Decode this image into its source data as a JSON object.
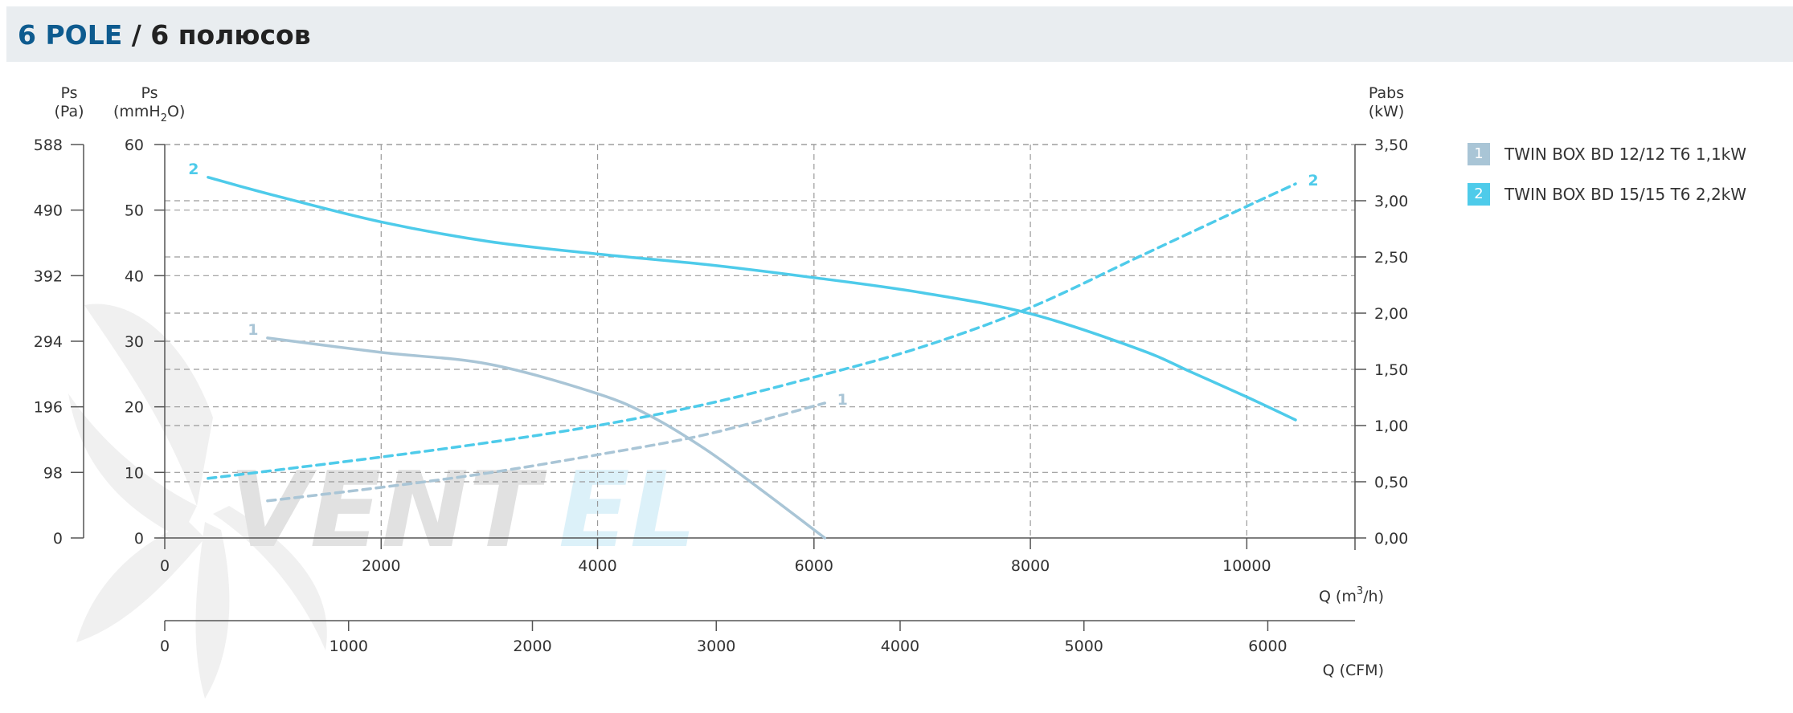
{
  "header": {
    "title_en": "6 POLE",
    "title_sep": " / ",
    "title_ru": "6 полюсов"
  },
  "legend": [
    {
      "num": "1",
      "label": "TWIN BOX BD 12/12 T6 1,1kW",
      "color": "#a9c5d6"
    },
    {
      "num": "2",
      "label": "TWIN BOX BD 15/15 T6 2,2kW",
      "color": "#4ecbea"
    }
  ],
  "watermark": {
    "brand_a": "VENT",
    "brand_b": "EL"
  },
  "chart_data": {
    "type": "line",
    "axes": {
      "y_left_pa": {
        "label": "Ps",
        "unit": "(Pa)",
        "ticks": [
          "588",
          "490",
          "392",
          "294",
          "196",
          "98",
          "0"
        ]
      },
      "y_left_mm": {
        "label": "Ps",
        "unit_parts": [
          "(mmH",
          "2",
          "O)"
        ],
        "range": [
          0,
          60
        ],
        "ticks": [
          "60",
          "50",
          "40",
          "30",
          "20",
          "10",
          "0"
        ]
      },
      "y_right": {
        "label": "Pabs",
        "unit": "(kW)",
        "range": [
          0,
          3.5
        ],
        "ticks": [
          "3,50",
          "3,00",
          "2,50",
          "2,00",
          "1,50",
          "1,00",
          "0,50",
          "0,00"
        ]
      },
      "x_main": {
        "label_prefix": "Q (m",
        "label_sup": "3",
        "label_suffix": "/h)",
        "range": [
          0,
          11000
        ],
        "ticks": [
          "0",
          "2000",
          "4000",
          "6000",
          "8000",
          "10000"
        ]
      },
      "x_cfm": {
        "label": "Q (CFM)",
        "ticks": [
          "0",
          "1000",
          "2000",
          "3000",
          "4000",
          "5000",
          "6000"
        ]
      }
    },
    "grid": true,
    "legend_position": "right",
    "series": [
      {
        "name": "1",
        "kind": "pressure",
        "axis": "mmH2O",
        "color": "#a9c5d6",
        "style": "solid",
        "x": [
          950,
          2000,
          3000,
          4000,
          4500,
          5000,
          5500,
          6100
        ],
        "y": [
          30.5,
          28.3,
          26.5,
          22,
          18.5,
          13.5,
          7.5,
          0
        ]
      },
      {
        "name": "2",
        "kind": "pressure",
        "axis": "mmH2O",
        "color": "#4ecbea",
        "style": "solid",
        "x": [
          400,
          1000,
          2000,
          3000,
          4000,
          5000,
          6000,
          7000,
          8000,
          9000,
          9500,
          10000,
          10450
        ],
        "y": [
          55,
          52.3,
          48.2,
          45.2,
          43.3,
          41.7,
          39.7,
          37.4,
          34.2,
          28.8,
          25.2,
          21.5,
          18
        ]
      },
      {
        "name": "1",
        "kind": "power",
        "axis": "kW",
        "color": "#a9c5d6",
        "style": "dashed",
        "x": [
          950,
          2000,
          3000,
          4000,
          5000,
          6100
        ],
        "y": [
          0.33,
          0.45,
          0.58,
          0.74,
          0.92,
          1.2
        ]
      },
      {
        "name": "2",
        "kind": "power",
        "axis": "kW",
        "color": "#4ecbea",
        "style": "dashed",
        "x": [
          400,
          1000,
          2000,
          3000,
          4000,
          5000,
          6000,
          7000,
          8000,
          9000,
          10000,
          10450
        ],
        "y": [
          0.53,
          0.6,
          0.72,
          0.85,
          1.0,
          1.19,
          1.43,
          1.7,
          2.05,
          2.5,
          2.95,
          3.15
        ]
      }
    ]
  }
}
